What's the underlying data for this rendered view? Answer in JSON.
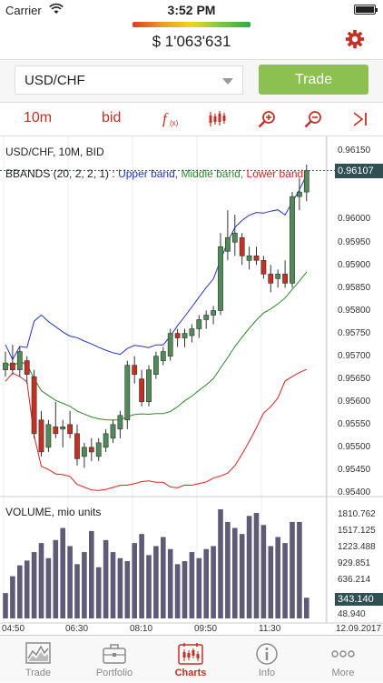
{
  "status": {
    "carrier": "Carrier",
    "time": "3:52 PM"
  },
  "header": {
    "equity": "$ 1'063'631"
  },
  "symbol": {
    "value": "USD/CHF",
    "trade_label": "Trade"
  },
  "toolbar": {
    "timeframe": "10m",
    "price_side": "bid"
  },
  "chart": {
    "title": "USD/CHF, 10M, BID",
    "bbands_label": "BBANDS (20, 2, 2, 1)",
    "upper_band": "Upper band,",
    "middle_band": "Middle band,",
    "lower_band": "Lower band",
    "colors": {
      "up": "#4f8a57",
      "down": "#c53022",
      "upper": "#2233cc",
      "middle": "#2a8a2a",
      "lower": "#e02020",
      "volume": "#5f5a77"
    },
    "price_ticks": [
      "0.96150",
      "0.96000",
      "0.95950",
      "0.95900",
      "0.95850",
      "0.95800",
      "0.95750",
      "0.95700",
      "0.95650",
      "0.95600",
      "0.95550",
      "0.95500",
      "0.95450",
      "0.95400"
    ],
    "current_price": "0.96107",
    "volume_title": "VOLUME, mio units",
    "volume_ticks": [
      "1810.762",
      "1517.125",
      "1223.488",
      "929.851",
      "636.214",
      "48.940"
    ],
    "current_volume": "343.140",
    "time_ticks": [
      "04:50",
      "06:30",
      "08:10",
      "09:50",
      "11:30"
    ],
    "date_label": "12.09.2017"
  },
  "tabs": [
    {
      "label": "Trade",
      "icon": "trade-chart-icon"
    },
    {
      "label": "Portfolio",
      "icon": "briefcase-icon"
    },
    {
      "label": "Charts",
      "icon": "candles-icon"
    },
    {
      "label": "Info",
      "icon": "info-icon"
    },
    {
      "label": "More",
      "icon": "more-icon"
    }
  ],
  "chart_data": {
    "type": "candlestick",
    "title": "USD/CHF, 10M, BID",
    "ylim": [
      0.954,
      0.9618
    ],
    "candles": [
      {
        "o": 0.9567,
        "h": 0.9571,
        "l": 0.95655,
        "c": 0.95685
      },
      {
        "o": 0.95685,
        "h": 0.95725,
        "l": 0.9566,
        "c": 0.9567
      },
      {
        "o": 0.9567,
        "h": 0.9572,
        "l": 0.95655,
        "c": 0.9571
      },
      {
        "o": 0.9569,
        "h": 0.957,
        "l": 0.9564,
        "c": 0.9566
      },
      {
        "o": 0.95655,
        "h": 0.9567,
        "l": 0.9552,
        "c": 0.9553
      },
      {
        "o": 0.9556,
        "h": 0.9558,
        "l": 0.9548,
        "c": 0.9549
      },
      {
        "o": 0.955,
        "h": 0.9556,
        "l": 0.9549,
        "c": 0.9555
      },
      {
        "o": 0.95545,
        "h": 0.956,
        "l": 0.9552,
        "c": 0.9553
      },
      {
        "o": 0.9554,
        "h": 0.9556,
        "l": 0.955,
        "c": 0.95545
      },
      {
        "o": 0.9555,
        "h": 0.9558,
        "l": 0.9552,
        "c": 0.9553
      },
      {
        "o": 0.9553,
        "h": 0.9555,
        "l": 0.9546,
        "c": 0.95475
      },
      {
        "o": 0.9548,
        "h": 0.9551,
        "l": 0.95455,
        "c": 0.955
      },
      {
        "o": 0.955,
        "h": 0.9552,
        "l": 0.9547,
        "c": 0.9549
      },
      {
        "o": 0.9548,
        "h": 0.9552,
        "l": 0.9547,
        "c": 0.9551
      },
      {
        "o": 0.955,
        "h": 0.9554,
        "l": 0.9549,
        "c": 0.9553
      },
      {
        "o": 0.9552,
        "h": 0.9556,
        "l": 0.9551,
        "c": 0.9555
      },
      {
        "o": 0.9554,
        "h": 0.9558,
        "l": 0.9552,
        "c": 0.9557
      },
      {
        "o": 0.9556,
        "h": 0.9569,
        "l": 0.9554,
        "c": 0.9568
      },
      {
        "o": 0.9568,
        "h": 0.957,
        "l": 0.9564,
        "c": 0.9566
      },
      {
        "o": 0.9565,
        "h": 0.9567,
        "l": 0.9559,
        "c": 0.956
      },
      {
        "o": 0.956,
        "h": 0.9568,
        "l": 0.9559,
        "c": 0.9567
      },
      {
        "o": 0.9566,
        "h": 0.9571,
        "l": 0.9565,
        "c": 0.957
      },
      {
        "o": 0.9569,
        "h": 0.9572,
        "l": 0.9568,
        "c": 0.9571
      },
      {
        "o": 0.957,
        "h": 0.9576,
        "l": 0.9569,
        "c": 0.9575
      },
      {
        "o": 0.9575,
        "h": 0.9576,
        "l": 0.9572,
        "c": 0.9574
      },
      {
        "o": 0.9574,
        "h": 0.9576,
        "l": 0.9572,
        "c": 0.9575
      },
      {
        "o": 0.95745,
        "h": 0.9577,
        "l": 0.9573,
        "c": 0.9576
      },
      {
        "o": 0.9576,
        "h": 0.9579,
        "l": 0.9574,
        "c": 0.9578
      },
      {
        "o": 0.9578,
        "h": 0.958,
        "l": 0.9576,
        "c": 0.9579
      },
      {
        "o": 0.9579,
        "h": 0.9581,
        "l": 0.9577,
        "c": 0.958
      },
      {
        "o": 0.958,
        "h": 0.9597,
        "l": 0.9579,
        "c": 0.9594
      },
      {
        "o": 0.9593,
        "h": 0.9602,
        "l": 0.9591,
        "c": 0.9596
      },
      {
        "o": 0.9595,
        "h": 0.9601,
        "l": 0.9592,
        "c": 0.9597
      },
      {
        "o": 0.9596,
        "h": 0.9597,
        "l": 0.959,
        "c": 0.9592
      },
      {
        "o": 0.9591,
        "h": 0.9594,
        "l": 0.9589,
        "c": 0.9592
      },
      {
        "o": 0.9592,
        "h": 0.9594,
        "l": 0.959,
        "c": 0.9591
      },
      {
        "o": 0.9591,
        "h": 0.9592,
        "l": 0.9587,
        "c": 0.9588
      },
      {
        "o": 0.9588,
        "h": 0.959,
        "l": 0.9584,
        "c": 0.9586
      },
      {
        "o": 0.9587,
        "h": 0.9589,
        "l": 0.9585,
        "c": 0.9588
      },
      {
        "o": 0.9588,
        "h": 0.9591,
        "l": 0.9585,
        "c": 0.9586
      },
      {
        "o": 0.9586,
        "h": 0.9606,
        "l": 0.9585,
        "c": 0.9605
      },
      {
        "o": 0.9605,
        "h": 0.9609,
        "l": 0.9602,
        "c": 0.9606
      },
      {
        "o": 0.9606,
        "h": 0.9612,
        "l": 0.9604,
        "c": 0.96107
      }
    ],
    "volume": [
      420,
      700,
      880,
      960,
      1100,
      1250,
      1000,
      1300,
      1500,
      1200,
      900,
      1100,
      1450,
      850,
      1300,
      1100,
      1000,
      950,
      1250,
      1400,
      1050,
      1200,
      1350,
      1150,
      900,
      950,
      1100,
      1000,
      1150,
      1200,
      1850,
      1600,
      1500,
      1400,
      1700,
      1750,
      1550,
      1200,
      1350,
      1250,
      1600,
      1600,
      343
    ]
  }
}
